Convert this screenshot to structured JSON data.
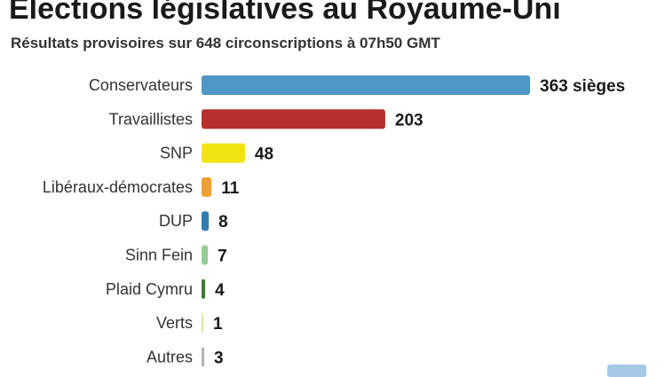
{
  "chart_data": {
    "type": "bar",
    "orientation": "horizontal",
    "title": "Élections législatives au Royaume-Uni",
    "subtitle": "Résultats provisoires sur 648 circonscriptions à 07h50 GMT",
    "unit_label": "sièges",
    "categories": [
      "Conservateurs",
      "Travaillistes",
      "SNP",
      "Libéraux-démocrates",
      "DUP",
      "Sinn Fein",
      "Plaid Cymru",
      "Verts",
      "Autres"
    ],
    "values": [
      363,
      203,
      48,
      11,
      8,
      7,
      4,
      1,
      3
    ],
    "value_labels": [
      "363 sièges",
      "203",
      "48",
      "11",
      "8",
      "7",
      "4",
      "1",
      "3"
    ],
    "colors": [
      "#4f97c6",
      "#b8302d",
      "#f2e413",
      "#f0a030",
      "#2f7cb5",
      "#93cf93",
      "#3c7c34",
      "#dcea9a",
      "#b5b5b5"
    ],
    "xlim": [
      0,
      363
    ],
    "grid": false,
    "legend": "none"
  }
}
